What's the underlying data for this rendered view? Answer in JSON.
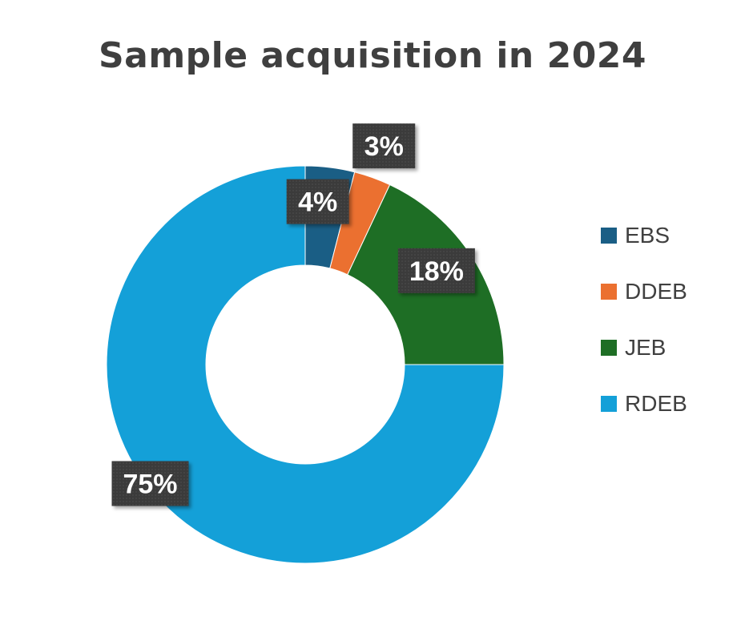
{
  "chart_data": {
    "type": "pie",
    "subtype": "donut",
    "title": "Sample acquisition in 2024",
    "categories": [
      "EBS",
      "DDEB",
      "JEB",
      "RDEB"
    ],
    "values": [
      4,
      3,
      18,
      75
    ],
    "labels": [
      "4%",
      "3%",
      "18%",
      "75%"
    ],
    "colors": [
      "#1a5e85",
      "#eb7030",
      "#1e6e25",
      "#14a0d8"
    ],
    "legend_position": "right",
    "label_box_color": "#3f3f3f"
  }
}
